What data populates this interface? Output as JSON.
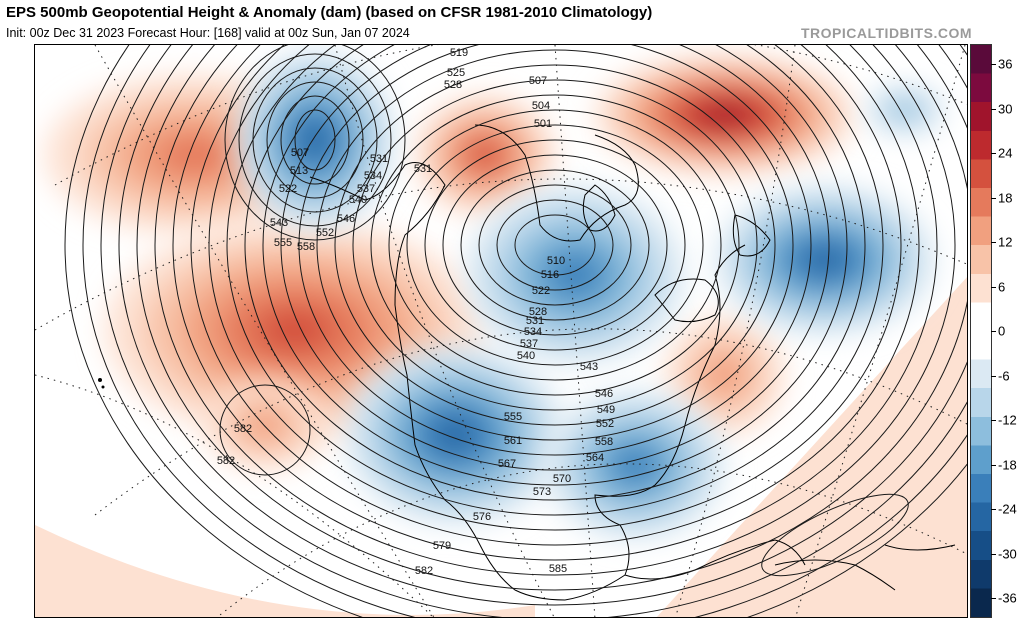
{
  "header": {
    "title": "EPS 500mb Geopotential Height & Anomaly (dam) (based on CFSR 1981-2010 Climatology)",
    "subtitle": "Init: 00z Dec 31 2023   Forecast Hour: [168]   valid at 00z Sun, Jan 07 2024",
    "brand": "TROPICALTIDBITS.COM"
  },
  "colors": {
    "pos": [
      "#fde1d2",
      "#f8c3a8",
      "#f1a07f",
      "#e57a5c",
      "#d4513e",
      "#bd2a2e",
      "#a0142c",
      "#7c0a3e",
      "#5a0a3a"
    ],
    "neg": [
      "#dbe9f3",
      "#b8d6ea",
      "#8dbedd",
      "#5e9fcc",
      "#3a7fba",
      "#2566a3",
      "#164e87",
      "#0f3a6b",
      "#0a284d"
    ],
    "contour": "#1a1a1a",
    "coast": "#000000"
  },
  "colorbar": {
    "labels": [
      "36",
      "30",
      "24",
      "18",
      "12",
      "6",
      "0",
      "-6",
      "-12",
      "-18",
      "-24",
      "-30",
      "-36"
    ]
  },
  "anomalies": [
    {
      "sign": "pos",
      "center": [
        160,
        110
      ],
      "r": [
        150,
        80
      ],
      "level": 3
    },
    {
      "sign": "pos",
      "center": [
        260,
        285
      ],
      "r": [
        190,
        110
      ],
      "level": 4
    },
    {
      "sign": "pos",
      "center": [
        450,
        110
      ],
      "r": [
        70,
        60
      ],
      "level": 4
    },
    {
      "sign": "pos",
      "center": [
        690,
        70
      ],
      "r": [
        130,
        60
      ],
      "level": 6
    },
    {
      "sign": "pos",
      "center": [
        690,
        330
      ],
      "r": [
        60,
        60
      ],
      "level": 2
    },
    {
      "sign": "pos",
      "center": [
        230,
        380
      ],
      "r": [
        60,
        45
      ],
      "level": 2
    },
    {
      "sign": "neg",
      "center": [
        280,
        95
      ],
      "r": [
        80,
        90
      ],
      "level": 5
    },
    {
      "sign": "neg",
      "center": [
        540,
        230
      ],
      "r": [
        110,
        90
      ],
      "level": 4
    },
    {
      "sign": "neg",
      "center": [
        420,
        390
      ],
      "r": [
        110,
        90
      ],
      "level": 5
    },
    {
      "sign": "neg",
      "center": [
        600,
        420
      ],
      "r": [
        90,
        75
      ],
      "level": 4
    },
    {
      "sign": "neg",
      "center": [
        790,
        215
      ],
      "r": [
        110,
        75
      ],
      "level": 5
    },
    {
      "sign": "neg",
      "center": [
        870,
        65
      ],
      "r": [
        40,
        25
      ],
      "level": 2
    }
  ],
  "contour_labels": [
    {
      "text": "519",
      "p": [
        458,
        52
      ]
    },
    {
      "text": "525",
      "p": [
        455,
        72
      ]
    },
    {
      "text": "528",
      "p": [
        452,
        84
      ]
    },
    {
      "text": "507",
      "p": [
        537,
        80
      ]
    },
    {
      "text": "504",
      "p": [
        540,
        105
      ]
    },
    {
      "text": "501",
      "p": [
        542,
        123
      ]
    },
    {
      "text": "507",
      "p": [
        299,
        152
      ]
    },
    {
      "text": "513",
      "p": [
        298,
        170
      ]
    },
    {
      "text": "522",
      "p": [
        287,
        188
      ]
    },
    {
      "text": "531",
      "p": [
        378,
        158
      ]
    },
    {
      "text": "534",
      "p": [
        372,
        175
      ]
    },
    {
      "text": "537",
      "p": [
        365,
        188
      ]
    },
    {
      "text": "540",
      "p": [
        357,
        199
      ]
    },
    {
      "text": "531",
      "p": [
        422,
        168
      ]
    },
    {
      "text": "543",
      "p": [
        278,
        222
      ]
    },
    {
      "text": "546",
      "p": [
        345,
        218
      ]
    },
    {
      "text": "552",
      "p": [
        324,
        232
      ]
    },
    {
      "text": "555",
      "p": [
        282,
        242
      ]
    },
    {
      "text": "558",
      "p": [
        305,
        246
      ]
    },
    {
      "text": "510",
      "p": [
        555,
        260
      ]
    },
    {
      "text": "516",
      "p": [
        549,
        274
      ]
    },
    {
      "text": "522",
      "p": [
        540,
        290
      ]
    },
    {
      "text": "528",
      "p": [
        537,
        311
      ]
    },
    {
      "text": "531",
      "p": [
        534,
        320
      ]
    },
    {
      "text": "534",
      "p": [
        532,
        331
      ]
    },
    {
      "text": "537",
      "p": [
        528,
        343
      ]
    },
    {
      "text": "540",
      "p": [
        525,
        355
      ]
    },
    {
      "text": "543",
      "p": [
        588,
        366
      ]
    },
    {
      "text": "546",
      "p": [
        603,
        393
      ]
    },
    {
      "text": "549",
      "p": [
        605,
        409
      ]
    },
    {
      "text": "552",
      "p": [
        604,
        423
      ]
    },
    {
      "text": "555",
      "p": [
        512,
        416
      ]
    },
    {
      "text": "558",
      "p": [
        603,
        441
      ]
    },
    {
      "text": "561",
      "p": [
        512,
        440
      ]
    },
    {
      "text": "564",
      "p": [
        594,
        457
      ]
    },
    {
      "text": "567",
      "p": [
        506,
        463
      ]
    },
    {
      "text": "570",
      "p": [
        561,
        478
      ]
    },
    {
      "text": "573",
      "p": [
        541,
        491
      ]
    },
    {
      "text": "576",
      "p": [
        481,
        516
      ]
    },
    {
      "text": "579",
      "p": [
        441,
        545
      ]
    },
    {
      "text": "582",
      "p": [
        242,
        428
      ]
    },
    {
      "text": "582",
      "p": [
        225,
        460
      ]
    },
    {
      "text": "582",
      "p": [
        423,
        570
      ]
    },
    {
      "text": "585",
      "p": [
        557,
        568
      ]
    }
  ]
}
